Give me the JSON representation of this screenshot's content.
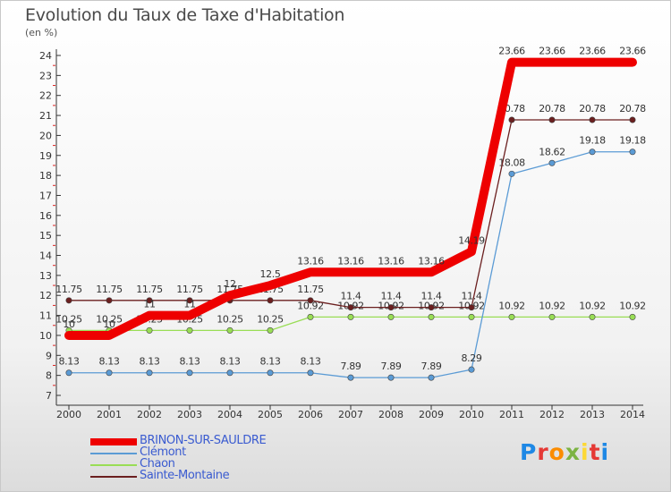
{
  "title": "Evolution du Taux de Taxe d'Habitation",
  "unit_label": "(en %)",
  "logo_text": "Proxiti",
  "chart_data": {
    "type": "line",
    "title": "Evolution du Taux de Taxe d'Habitation",
    "ylabel": "(en %)",
    "xlabel": "",
    "x": [
      "2000",
      "2001",
      "2002",
      "2003",
      "2004",
      "2005",
      "2006",
      "2007",
      "2008",
      "2009",
      "2010",
      "2011",
      "2012",
      "2013",
      "2014"
    ],
    "ylim": [
      7,
      24
    ],
    "yticks": [
      7,
      8,
      9,
      10,
      11,
      12,
      13,
      14,
      15,
      16,
      17,
      18,
      19,
      20,
      21,
      22,
      23,
      24
    ],
    "grid": false,
    "legend_position": "bottom-left",
    "series": [
      {
        "name": "BRINON-SUR-SAULDRE",
        "color": "#ee0000",
        "values": [
          10,
          10,
          11,
          11,
          12,
          12.5,
          13.16,
          13.16,
          13.16,
          13.16,
          14.19,
          23.66,
          23.66,
          23.66,
          23.66
        ],
        "labels": [
          "10",
          "10",
          "11",
          "11",
          "12",
          "12.5",
          "13.16",
          "13.16",
          "13.16",
          "13.16",
          "14.19",
          "23.66",
          "23.66",
          "23.66",
          "23.66"
        ]
      },
      {
        "name": "Clémont",
        "color": "#5b9bd5",
        "values": [
          8.13,
          8.13,
          8.13,
          8.13,
          8.13,
          8.13,
          8.13,
          7.89,
          7.89,
          7.89,
          8.29,
          18.08,
          18.62,
          19.18,
          19.18
        ],
        "labels": [
          "8.13",
          "8.13",
          "8.13",
          "8.13",
          "8.13",
          "8.13",
          "8.13",
          "7.89",
          "7.89",
          "7.89",
          "8.29",
          "18.08",
          "18.62",
          "19.18",
          "19.18"
        ]
      },
      {
        "name": "Chaon",
        "color": "#99dd55",
        "values": [
          10.25,
          10.25,
          10.25,
          10.25,
          10.25,
          10.25,
          10.92,
          10.92,
          10.92,
          10.92,
          10.92,
          10.92,
          10.92,
          10.92,
          10.92
        ],
        "labels": [
          "10.25",
          "10.25",
          "10.25",
          "10.25",
          "10.25",
          "10.25",
          "10.92",
          "10.92",
          "10.92",
          "10.92",
          "10.92",
          "10.92",
          "10.92",
          "10.92",
          "10.92"
        ]
      },
      {
        "name": "Sainte-Montaine",
        "color": "#6b1f1f",
        "values": [
          11.75,
          11.75,
          11.75,
          11.75,
          11.75,
          11.75,
          11.75,
          11.4,
          11.4,
          11.4,
          11.4,
          20.78,
          20.78,
          20.78,
          20.78
        ],
        "labels": [
          "11.75",
          "11.75",
          "11.75",
          "11.75",
          "11.75",
          "11.75",
          "11.75",
          "11.4",
          "11.4",
          "11.4",
          "11.4",
          "20.78",
          "20.78",
          "20.78",
          "20.78"
        ]
      }
    ]
  }
}
